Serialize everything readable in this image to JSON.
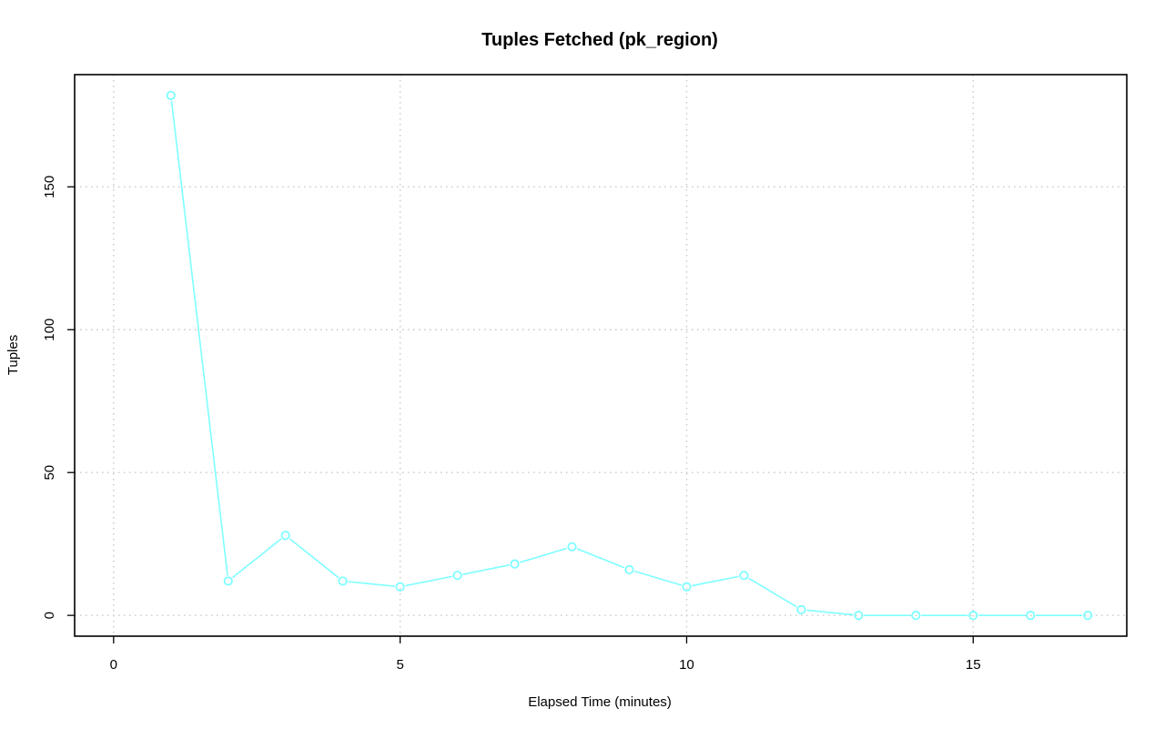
{
  "chart_data": {
    "type": "line",
    "title": "Tuples Fetched (pk_region)",
    "xlabel": "Elapsed Time (minutes)",
    "ylabel": "Tuples",
    "xlim": [
      0,
      17
    ],
    "ylim": [
      0,
      182
    ],
    "x_ticks": [
      0,
      5,
      10,
      15
    ],
    "y_ticks": [
      0,
      50,
      100,
      150
    ],
    "grid": true,
    "series": [
      {
        "color": "#7fffff",
        "marker": "open-circle",
        "x": [
          1,
          2,
          3,
          4,
          5,
          6,
          7,
          8,
          9,
          10,
          11,
          12,
          13,
          14,
          15,
          16,
          17
        ],
        "y": [
          182,
          12,
          28,
          12,
          10,
          14,
          18,
          24,
          16,
          10,
          14,
          2,
          0,
          0,
          0,
          0,
          0
        ]
      }
    ]
  }
}
